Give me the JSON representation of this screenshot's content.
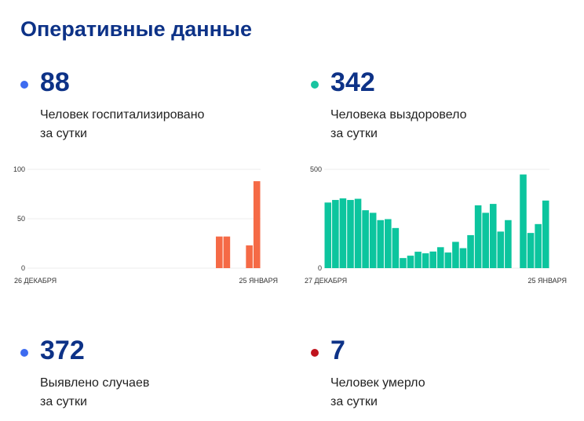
{
  "title": "Оперативные данные",
  "stats": [
    {
      "value": "88",
      "line1": "Человек госпитализировано",
      "line2": "за сутки",
      "dot": "#3d6bf0"
    },
    {
      "value": "342",
      "line1": "Человека выздоровело",
      "line2": "за сутки",
      "dot": "#18c4a0"
    },
    {
      "value": "372",
      "line1": "Выявлено случаев",
      "line2": "за сутки",
      "dot": "#3d6bf0"
    },
    {
      "value": "7",
      "line1": "Человек умерло",
      "line2": "за сутки",
      "dot": "#c0141e"
    }
  ],
  "chart_data": [
    {
      "type": "bar",
      "title": "Человек госпитализировано за сутки",
      "color": "#f56a46",
      "ylim": [
        0,
        100
      ],
      "yticks": [
        "0",
        "50",
        "100"
      ],
      "xlabels": [
        "26 ДЕКАБРЯ",
        "25 ЯНВАРЯ"
      ],
      "values": [
        null,
        null,
        null,
        null,
        null,
        null,
        null,
        null,
        null,
        null,
        null,
        null,
        null,
        null,
        null,
        null,
        null,
        null,
        null,
        null,
        null,
        null,
        null,
        null,
        null,
        32,
        32,
        null,
        null,
        23,
        88
      ]
    },
    {
      "type": "bar",
      "title": "Человека выздоровело за сутки",
      "color": "#0cc59e",
      "ylim": [
        0,
        500
      ],
      "yticks": [
        "0",
        "500"
      ],
      "xlabels": [
        "27 ДЕКАБРЯ",
        "25 ЯНВАРЯ"
      ],
      "values": [
        332,
        345,
        353,
        345,
        351,
        293,
        280,
        243,
        248,
        203,
        51,
        63,
        83,
        75,
        84,
        106,
        79,
        133,
        101,
        167,
        318,
        280,
        325,
        185,
        243,
        null,
        474,
        178,
        223,
        342
      ]
    }
  ]
}
